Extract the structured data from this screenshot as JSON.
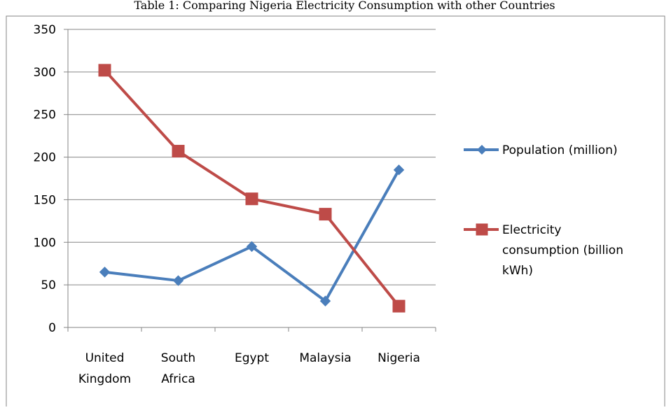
{
  "chart_data": {
    "type": "line",
    "title": "Table 1: Comparing Nigeria Electricity Consumption with other Countries",
    "categories": [
      [
        "United",
        "Kingdom"
      ],
      [
        "South",
        "Africa"
      ],
      [
        "Egypt"
      ],
      [
        "Malaysia"
      ],
      [
        "Nigeria"
      ]
    ],
    "ylim": [
      0,
      350
    ],
    "yticks": [
      "0",
      "50",
      "100",
      "150",
      "200",
      "250",
      "300",
      "350"
    ],
    "grid": true,
    "legend_position": "right",
    "series": [
      {
        "name": "Population (million)",
        "legend_lines": [
          "Population (million)"
        ],
        "color": "#4A7EBB",
        "marker": "diamond",
        "values": [
          65,
          55,
          95,
          31,
          185
        ]
      },
      {
        "name": "Electricity consumption (billion kWh)",
        "legend_lines": [
          "Electricity",
          "consumption (billion",
          "kWh)"
        ],
        "color": "#BE4B48",
        "marker": "square",
        "values": [
          302,
          207,
          151,
          133,
          25
        ]
      }
    ]
  }
}
